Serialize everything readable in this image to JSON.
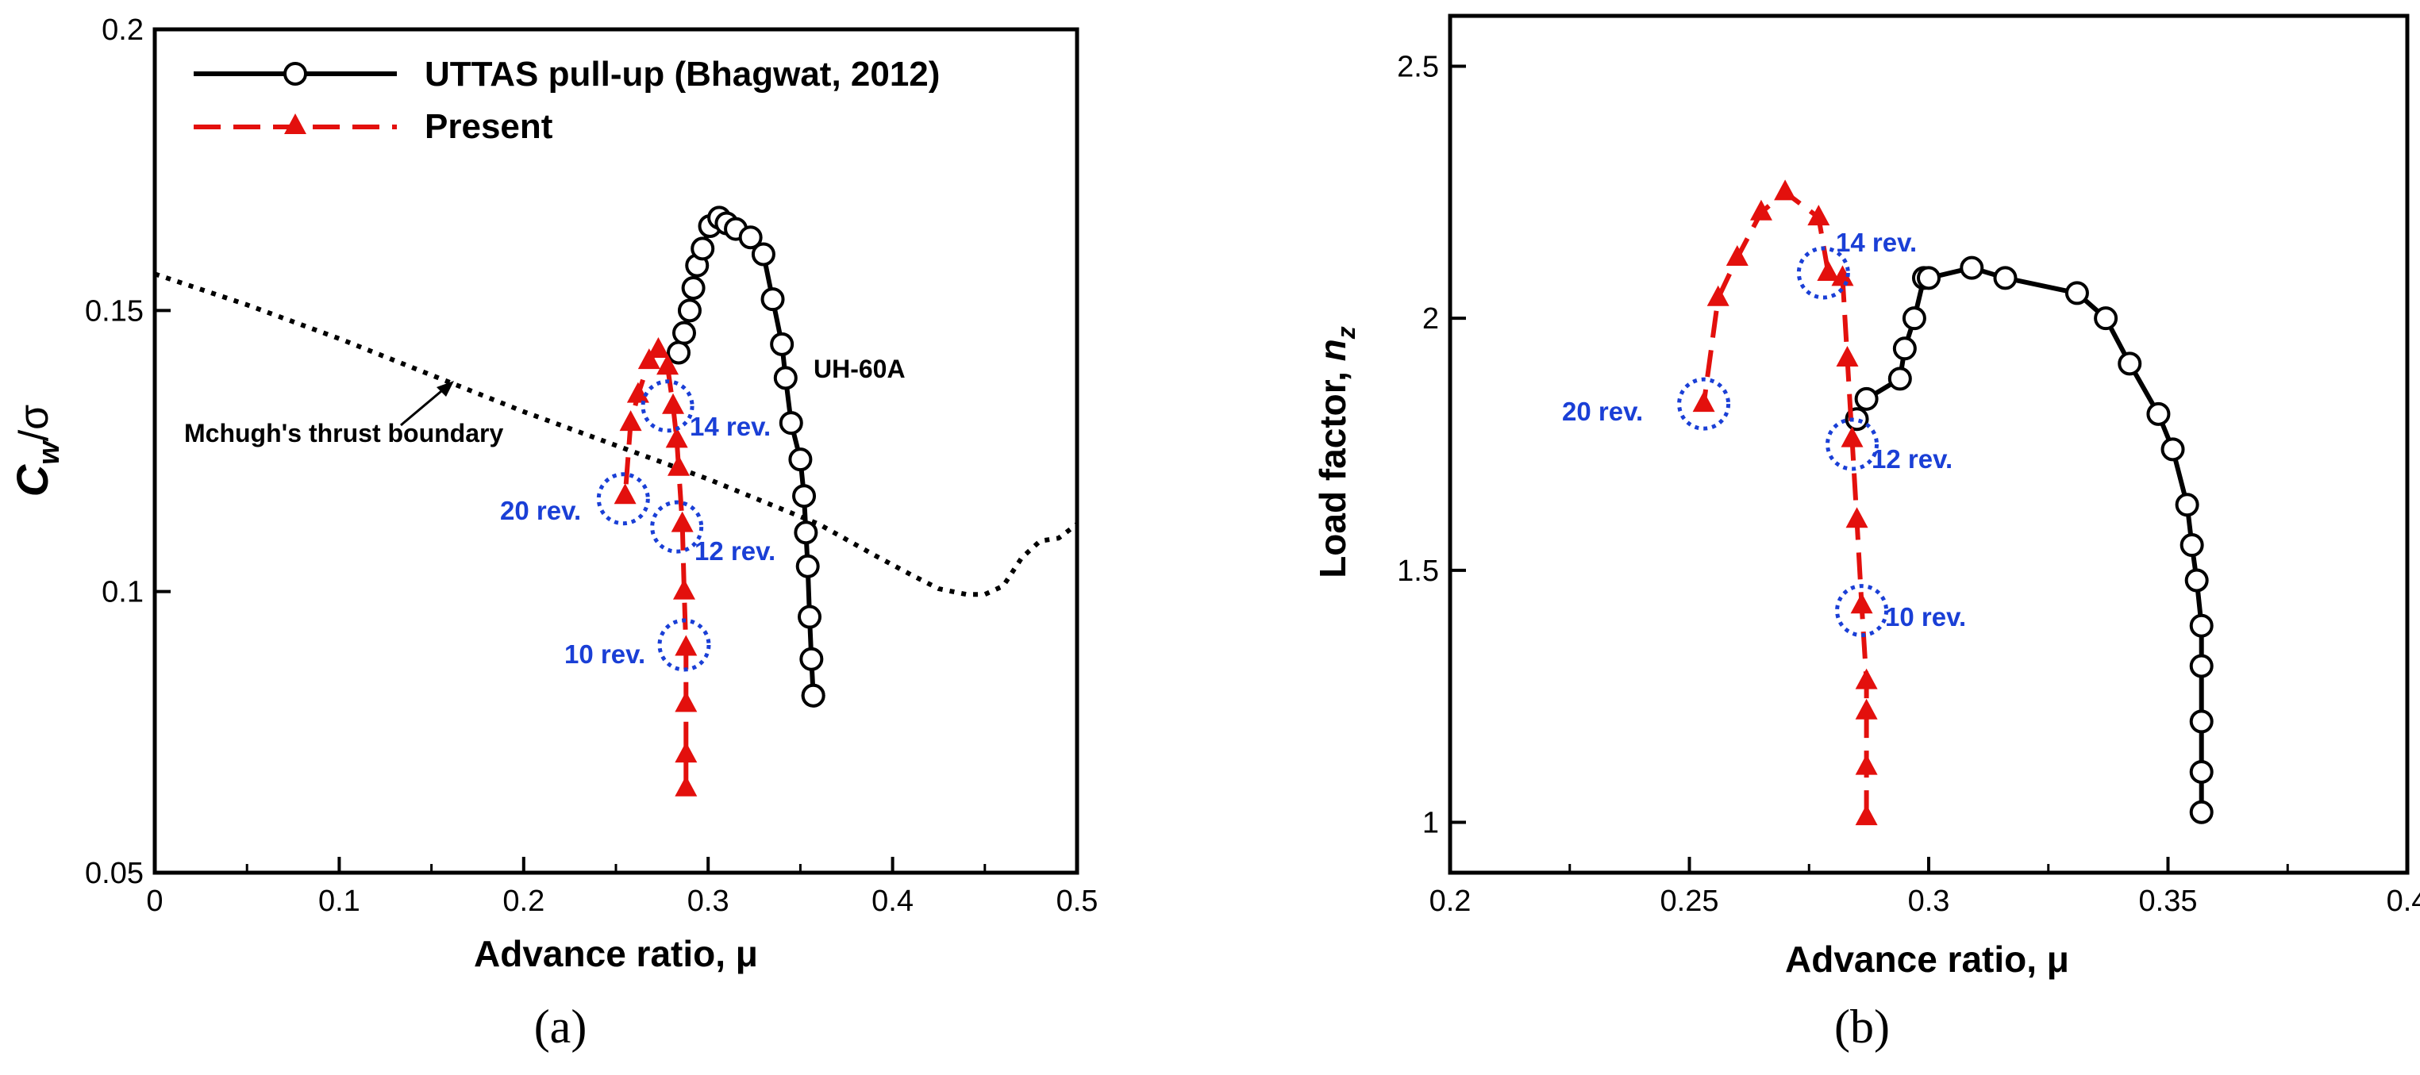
{
  "chart_data": [
    {
      "type": "line",
      "panel_label": "(a)",
      "xlabel": "Advance ratio, μ",
      "ylabel_main": "C",
      "ylabel_sub": "w",
      "ylabel_tail": "/σ",
      "xlim": [
        0,
        0.5
      ],
      "ylim": [
        0.05,
        0.2
      ],
      "xticks": [
        0,
        0.1,
        0.2,
        0.3,
        0.4,
        0.5
      ],
      "xtick_labels": [
        "0",
        "0.1",
        "0.2",
        "0.3",
        "0.4",
        "0.5"
      ],
      "yticks": [
        0.05,
        0.1,
        0.15,
        0.2
      ],
      "ytick_labels": [
        "0.05",
        "0.1",
        "0.15",
        "0.2"
      ],
      "series": [
        {
          "name": "UTTAS pull-up (Bhagwat, 2012)",
          "color": "#000000",
          "style": "solid",
          "marker": "circle",
          "x": [
            0.284,
            0.287,
            0.29,
            0.292,
            0.294,
            0.297,
            0.301,
            0.306,
            0.31,
            0.315,
            0.323,
            0.33,
            0.335,
            0.34,
            0.342,
            0.345,
            0.35,
            0.352,
            0.353,
            0.354,
            0.355,
            0.356,
            0.357,
            0.357
          ],
          "y": [
            0.1425,
            0.146,
            0.15,
            0.154,
            0.158,
            0.161,
            0.165,
            0.1665,
            0.1655,
            0.1645,
            0.163,
            0.16,
            0.152,
            0.144,
            0.138,
            0.13,
            0.1235,
            0.117,
            0.1105,
            0.1045,
            0.0955,
            0.088,
            0.0815,
            0.0815
          ]
        },
        {
          "name": "Present",
          "color": "#e3100d",
          "style": "dashed",
          "marker": "triangle",
          "x": [
            0.288,
            0.288,
            0.288,
            0.288,
            0.287,
            0.286,
            0.284,
            0.283,
            0.281,
            0.278,
            0.273,
            0.268,
            0.262,
            0.258,
            0.255
          ],
          "y": [
            0.065,
            0.071,
            0.08,
            0.09,
            0.1,
            0.112,
            0.122,
            0.127,
            0.133,
            0.14,
            0.143,
            0.141,
            0.135,
            0.13,
            0.117
          ]
        },
        {
          "name": "Mchugh's thrust boundary",
          "color": "#000000",
          "style": "dotted",
          "marker": "none",
          "x": [
            0,
            0.05,
            0.1,
            0.15,
            0.2,
            0.25,
            0.3,
            0.33,
            0.36,
            0.39,
            0.41,
            0.425,
            0.44,
            0.45,
            0.46,
            0.47,
            0.48,
            0.49,
            0.5
          ],
          "y": [
            0.1565,
            0.151,
            0.145,
            0.1385,
            0.132,
            0.126,
            0.12,
            0.116,
            0.112,
            0.1065,
            0.103,
            0.1005,
            0.0995,
            0.0995,
            0.101,
            0.106,
            0.109,
            0.1095,
            0.112
          ]
        }
      ],
      "annotations": [
        {
          "text": "14 rev.",
          "x": 0.278,
          "y": 0.133
        },
        {
          "text": "12 rev.",
          "x": 0.283,
          "y": 0.1115
        },
        {
          "text": "10 rev.",
          "x": 0.287,
          "y": 0.0905
        },
        {
          "text": "20 rev.",
          "x": 0.254,
          "y": 0.1165
        }
      ],
      "labels": {
        "uh60a": "UH-60A",
        "boundary": "Mchugh's thrust boundary"
      }
    },
    {
      "type": "line",
      "panel_label": "(b)",
      "xlabel": "Advance ratio, μ",
      "ylabel_main": "Load factor, ",
      "ylabel_var": "n",
      "ylabel_sub": "z",
      "xlim": [
        0.2,
        0.4
      ],
      "ylim": [
        0.9,
        2.6
      ],
      "xticks": [
        0.2,
        0.25,
        0.3,
        0.35,
        0.4
      ],
      "xtick_labels": [
        "0.2",
        "0.25",
        "0.3",
        "0.35",
        "0.4"
      ],
      "yticks": [
        1,
        1.5,
        2,
        2.5
      ],
      "ytick_labels": [
        "1",
        "1.5",
        "2",
        "2.5"
      ],
      "series": [
        {
          "name": "UTTAS pull-up (Bhagwat, 2012)",
          "color": "#000000",
          "style": "solid",
          "marker": "circle",
          "x": [
            0.285,
            0.287,
            0.294,
            0.295,
            0.297,
            0.299,
            0.3,
            0.309,
            0.316,
            0.331,
            0.337,
            0.342,
            0.348,
            0.351,
            0.354,
            0.355,
            0.356,
            0.357,
            0.357,
            0.357,
            0.357,
            0.357
          ],
          "y": [
            1.8,
            1.84,
            1.88,
            1.94,
            2.0,
            2.08,
            2.08,
            2.1,
            2.08,
            2.05,
            2.0,
            1.91,
            1.81,
            1.74,
            1.63,
            1.55,
            1.48,
            1.39,
            1.31,
            1.2,
            1.1,
            1.02
          ]
        },
        {
          "name": "Present",
          "color": "#e3100d",
          "style": "dashed",
          "marker": "triangle",
          "x": [
            0.287,
            0.287,
            0.287,
            0.287,
            0.286,
            0.285,
            0.284,
            0.283,
            0.282,
            0.279,
            0.277,
            0.27,
            0.265,
            0.26,
            0.256,
            0.253
          ],
          "y": [
            1.01,
            1.11,
            1.22,
            1.28,
            1.43,
            1.6,
            1.76,
            1.92,
            2.08,
            2.09,
            2.2,
            2.25,
            2.21,
            2.12,
            2.04,
            1.83
          ]
        }
      ],
      "annotations": [
        {
          "text": "14 rev.",
          "x": 0.278,
          "y": 2.09
        },
        {
          "text": "12 rev.",
          "x": 0.284,
          "y": 1.75
        },
        {
          "text": "10 rev.",
          "x": 0.286,
          "y": 1.42
        },
        {
          "text": "20 rev.",
          "x": 0.253,
          "y": 1.83
        }
      ]
    }
  ],
  "legend": [
    {
      "label": "UTTAS pull-up (Bhagwat, 2012)",
      "color": "#000000",
      "marker": "circle",
      "style": "solid"
    },
    {
      "label": "Present",
      "color": "#e3100d",
      "marker": "triangle",
      "style": "dashed"
    }
  ]
}
